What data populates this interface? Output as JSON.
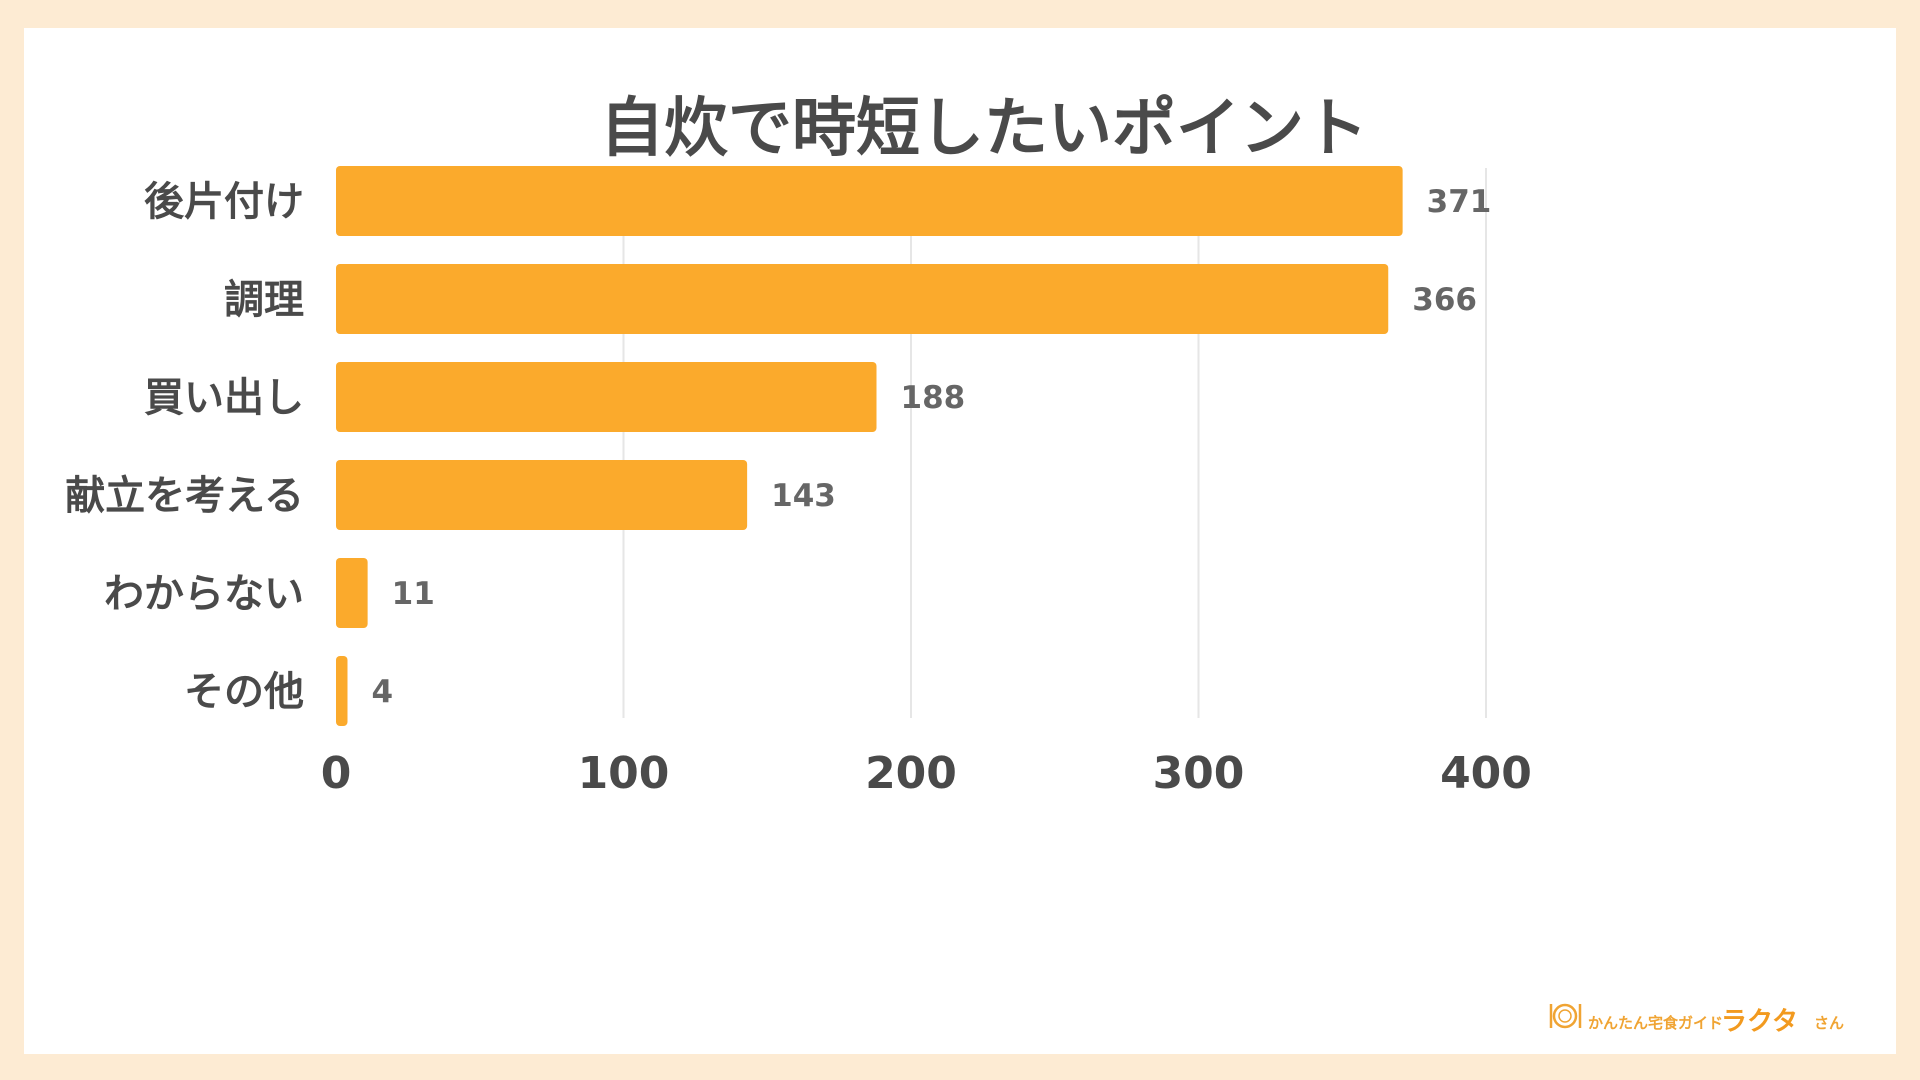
{
  "chart_data": {
    "type": "bar",
    "orientation": "horizontal",
    "title": "自炊で時短したいポイント",
    "categories": [
      "後片付け",
      "調理",
      "買い出し",
      "献立を考える",
      "わからない",
      "その他"
    ],
    "values": [
      371,
      366,
      188,
      143,
      11,
      4
    ],
    "value_labels": [
      "371",
      "366",
      "188",
      "143",
      "11",
      "4"
    ],
    "xlim": [
      0,
      400
    ],
    "xticks": [
      0,
      100,
      200,
      300,
      400
    ],
    "xtick_labels": [
      "0",
      "100",
      "200",
      "300",
      "400"
    ],
    "xlabel": "",
    "ylabel": "",
    "grid": true,
    "colors": {
      "bar": "#fbaa2c",
      "background": "#fdebd3",
      "panel": "#ffffff",
      "text": "#4a4a4a",
      "grid": "#e6e6e6"
    }
  },
  "logo": {
    "tagline": "かんたん宅食ガイド",
    "name": "ラクタ",
    "suffix": "さん",
    "icon": "plate-fork-knife-icon"
  }
}
